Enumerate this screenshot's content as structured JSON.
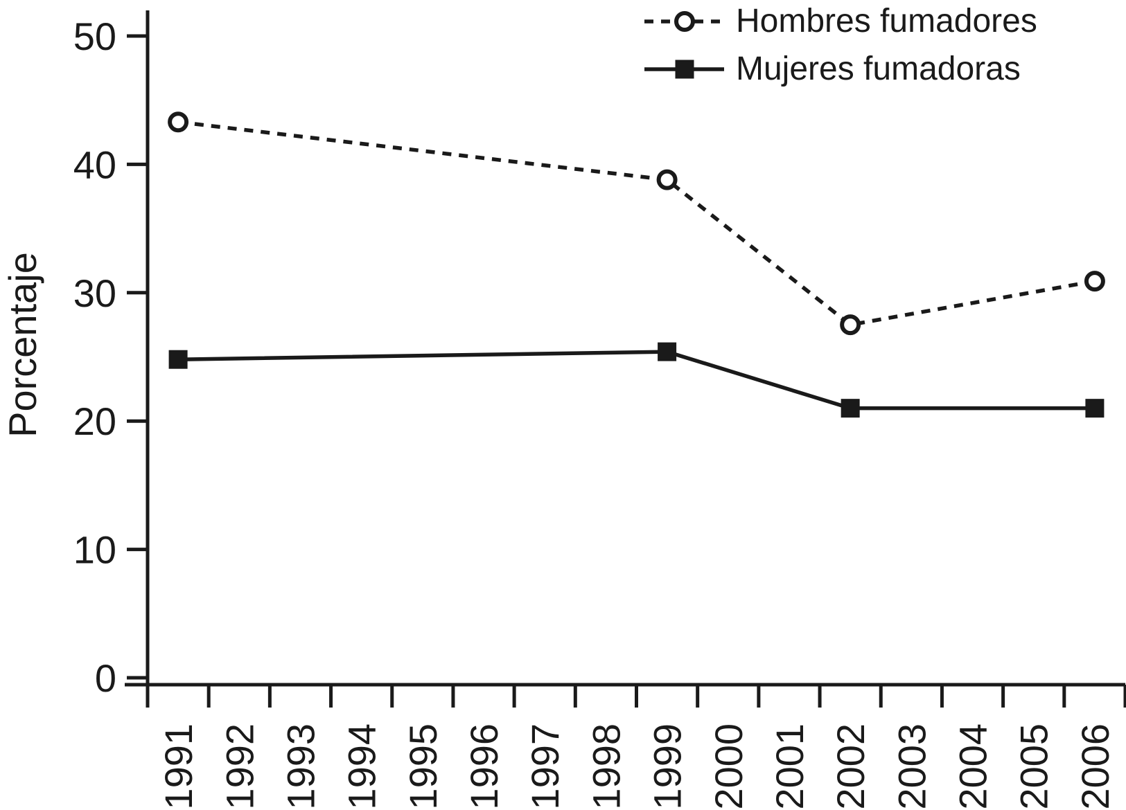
{
  "figure": {
    "background": "#ffffff",
    "ink_color": "#1a1a1a"
  },
  "chart_data": {
    "type": "line",
    "title": "",
    "xlabel": "",
    "ylabel": "Porcentaje",
    "x_axis": {
      "tick_labels": [
        "1991",
        "1992",
        "1993",
        "1994",
        "1995",
        "1996",
        "1997",
        "1998",
        "1999",
        "2000",
        "2001",
        "2002",
        "2003",
        "2004",
        "2005",
        "2006"
      ],
      "tick_style": "boundary",
      "label_rotation_deg": -90
    },
    "y_axis": {
      "ticks": [
        0,
        10,
        20,
        30,
        40,
        50
      ],
      "range": [
        0,
        52
      ]
    },
    "legend": {
      "position": "top-right"
    },
    "series": [
      {
        "name": "Hombres fumadores",
        "line_style": "dashed",
        "marker": "open-circle",
        "color": "#1a1a1a",
        "points": [
          {
            "x": 1991,
            "y": 43.3
          },
          {
            "x": 1999,
            "y": 38.8
          },
          {
            "x": 2002,
            "y": 27.5
          },
          {
            "x": 2006,
            "y": 30.9
          }
        ]
      },
      {
        "name": "Mujeres fumadoras",
        "line_style": "solid",
        "marker": "filled-square",
        "color": "#1a1a1a",
        "points": [
          {
            "x": 1991,
            "y": 24.8
          },
          {
            "x": 1999,
            "y": 25.4
          },
          {
            "x": 2002,
            "y": 21.0
          },
          {
            "x": 2006,
            "y": 21.0
          }
        ]
      }
    ]
  }
}
